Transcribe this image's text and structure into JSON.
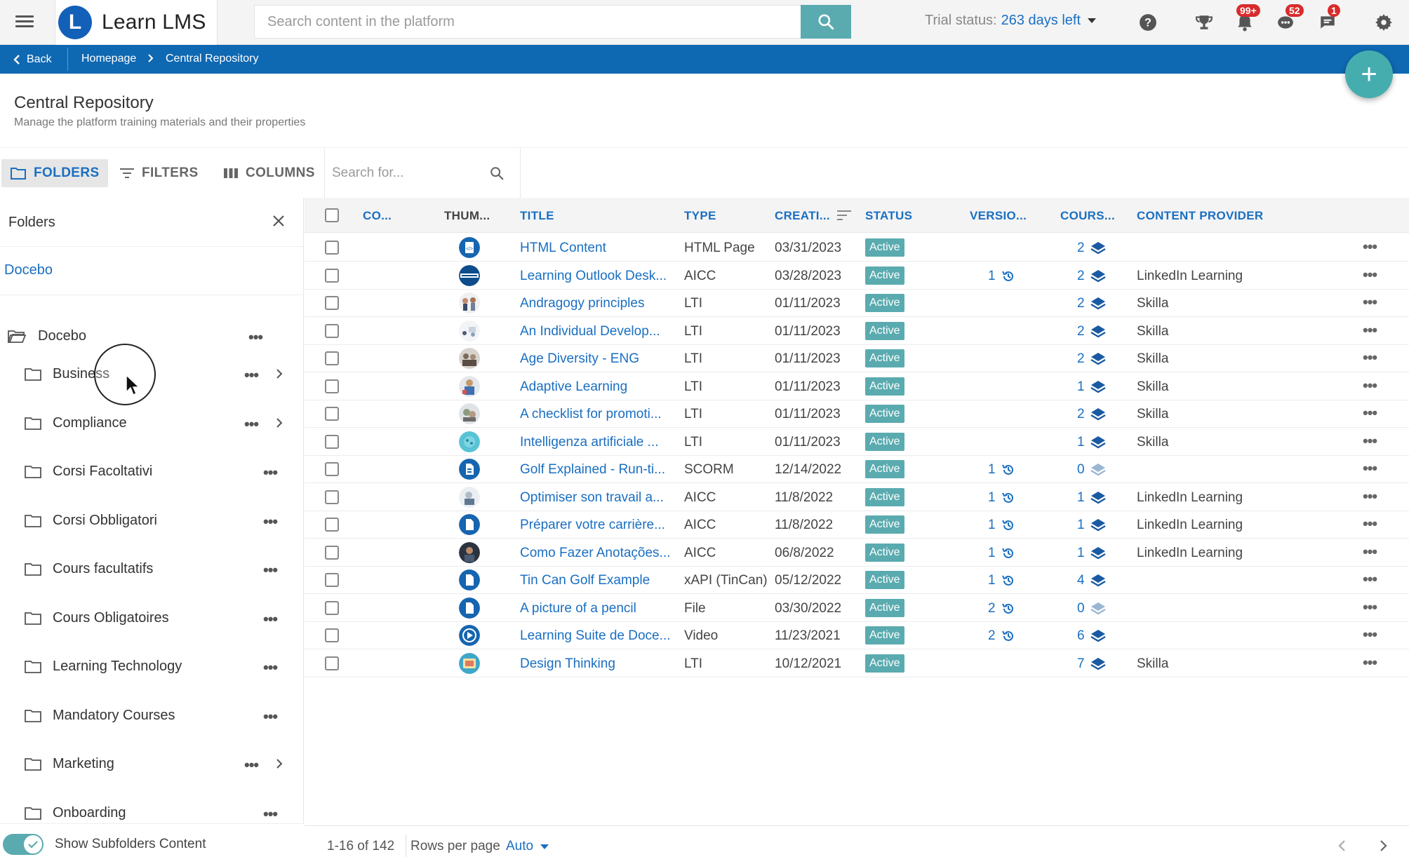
{
  "header": {
    "brand_name": "Learn LMS",
    "brand_logo_letter": "L",
    "search_placeholder": "Search content in the platform",
    "trial_label": "Trial status:",
    "trial_days": "263 days left",
    "badges": {
      "notifications": "99+",
      "messages": "52",
      "chat": "1"
    },
    "colors": {
      "accent": "#5aabaf",
      "brand": "#1360b8",
      "badge": "#d92b2b"
    }
  },
  "breadcrumb": {
    "back_label": "Back",
    "items": [
      "Homepage",
      "Central Repository"
    ],
    "bar_color": "#0f68b2"
  },
  "page": {
    "title": "Central Repository",
    "subtitle": "Manage the platform training materials and their properties"
  },
  "toolbar": {
    "folders_label": "FOLDERS",
    "filters_label": "FILTERS",
    "columns_label": "COLUMNS",
    "search_placeholder": "Search for..."
  },
  "folders": {
    "panel_title": "Folders",
    "root_link": "Docebo",
    "root_folder": "Docebo",
    "items": [
      {
        "name": "Business",
        "has_children": true
      },
      {
        "name": "Compliance",
        "has_children": true
      },
      {
        "name": "Corsi Facoltativi",
        "has_children": false
      },
      {
        "name": "Corsi Obbligatori",
        "has_children": false
      },
      {
        "name": "Cours facultatifs",
        "has_children": false
      },
      {
        "name": "Cours Obligatoires",
        "has_children": false
      },
      {
        "name": "Learning Technology",
        "has_children": false
      },
      {
        "name": "Mandatory Courses",
        "has_children": false
      },
      {
        "name": "Marketing",
        "has_children": true
      },
      {
        "name": "Onboarding",
        "has_children": false
      }
    ],
    "show_subfolders_label": "Show Subfolders Content",
    "show_subfolders_on": true
  },
  "table": {
    "columns": {
      "code": "CO...",
      "thumbnail": "THUM...",
      "title": "TITLE",
      "type": "TYPE",
      "created": "CREATI...",
      "status": "STATUS",
      "versions": "VERSIO...",
      "courses": "COURS...",
      "provider": "CONTENT PROVIDER"
    },
    "rows": [
      {
        "thumb": "html-icon",
        "title": "HTML Content",
        "type": "HTML Page",
        "created": "03/31/2023",
        "status": "Active",
        "versions": "",
        "courses": "2",
        "provider": ""
      },
      {
        "thumb": "outlook-thumb",
        "title": "Learning Outlook Desk...",
        "type": "AICC",
        "created": "03/28/2023",
        "status": "Active",
        "versions": "1",
        "courses": "2",
        "provider": "LinkedIn Learning"
      },
      {
        "thumb": "andragogy-thumb",
        "title": "Andragogy principles",
        "type": "LTI",
        "created": "01/11/2023",
        "status": "Active",
        "versions": "",
        "courses": "2",
        "provider": "Skilla"
      },
      {
        "thumb": "individual-thumb",
        "title": "An Individual Develop...",
        "type": "LTI",
        "created": "01/11/2023",
        "status": "Active",
        "versions": "",
        "courses": "2",
        "provider": "Skilla"
      },
      {
        "thumb": "age-thumb",
        "title": "Age Diversity - ENG",
        "type": "LTI",
        "created": "01/11/2023",
        "status": "Active",
        "versions": "",
        "courses": "2",
        "provider": "Skilla"
      },
      {
        "thumb": "adaptive-thumb",
        "title": "Adaptive Learning",
        "type": "LTI",
        "created": "01/11/2023",
        "status": "Active",
        "versions": "",
        "courses": "1",
        "provider": "Skilla"
      },
      {
        "thumb": "checklist-thumb",
        "title": "A checklist for promoti...",
        "type": "LTI",
        "created": "01/11/2023",
        "status": "Active",
        "versions": "",
        "courses": "2",
        "provider": "Skilla"
      },
      {
        "thumb": "ai-thumb",
        "title": "Intelligenza artificiale ...",
        "type": "LTI",
        "created": "01/11/2023",
        "status": "Active",
        "versions": "",
        "courses": "1",
        "provider": "Skilla"
      },
      {
        "thumb": "scorm-icon",
        "title": "Golf Explained - Run-ti...",
        "type": "SCORM",
        "created": "12/14/2022",
        "status": "Active",
        "versions": "1",
        "courses": "0",
        "provider": ""
      },
      {
        "thumb": "optimiser-thumb",
        "title": "Optimiser son travail a...",
        "type": "AICC",
        "created": "11/8/2022",
        "status": "Active",
        "versions": "1",
        "courses": "1",
        "provider": "LinkedIn Learning"
      },
      {
        "thumb": "file-icon",
        "title": "Préparer votre carrière...",
        "type": "AICC",
        "created": "11/8/2022",
        "status": "Active",
        "versions": "1",
        "courses": "1",
        "provider": "LinkedIn Learning"
      },
      {
        "thumb": "person-thumb",
        "title": "Como Fazer Anotações...",
        "type": "AICC",
        "created": "06/8/2022",
        "status": "Active",
        "versions": "1",
        "courses": "1",
        "provider": "LinkedIn Learning"
      },
      {
        "thumb": "file-icon",
        "title": "Tin Can Golf Example",
        "type": "xAPI (TinCan)",
        "created": "05/12/2022",
        "status": "Active",
        "versions": "1",
        "courses": "4",
        "provider": ""
      },
      {
        "thumb": "file-icon",
        "title": "A picture of a pencil",
        "type": "File",
        "created": "03/30/2022",
        "status": "Active",
        "versions": "2",
        "courses": "0",
        "provider": ""
      },
      {
        "thumb": "video-icon",
        "title": "Learning Suite de Doce...",
        "type": "Video",
        "created": "11/23/2021",
        "status": "Active",
        "versions": "2",
        "courses": "6",
        "provider": ""
      },
      {
        "thumb": "design-thumb",
        "title": "Design Thinking",
        "type": "LTI",
        "created": "10/12/2021",
        "status": "Active",
        "versions": "",
        "courses": "7",
        "provider": "Skilla"
      }
    ],
    "footer": {
      "range": "1-16 of 142",
      "rows_per_page_label": "Rows per page",
      "rows_per_page_value": "Auto"
    }
  }
}
